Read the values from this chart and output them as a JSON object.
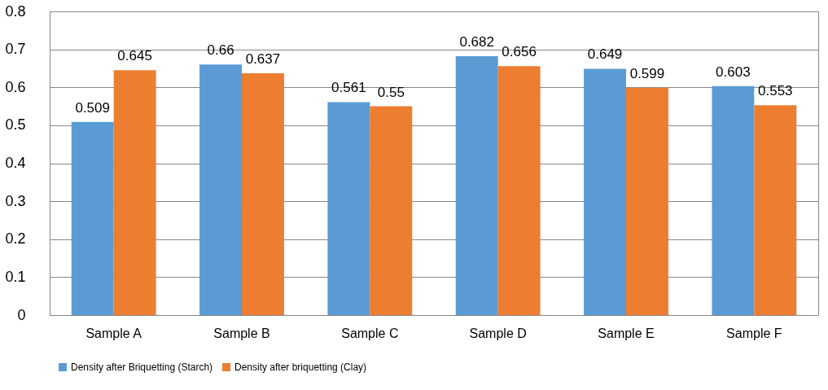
{
  "chart_data": {
    "type": "bar",
    "categories": [
      "Sample A",
      "Sample B",
      "Sample C",
      "Sample D",
      "Sample E",
      "Sample F"
    ],
    "series": [
      {
        "name": "Density after Briquetting (Starch)",
        "color": "#5b9bd5",
        "values": [
          0.509,
          0.66,
          0.561,
          0.682,
          0.649,
          0.603
        ]
      },
      {
        "name": "Density after briquetting (Clay)",
        "color": "#ed7d31",
        "values": [
          0.645,
          0.637,
          0.55,
          0.656,
          0.599,
          0.553
        ]
      }
    ],
    "ylim": [
      0,
      0.8
    ],
    "yticks": [
      0,
      0.1,
      0.2,
      0.3,
      0.4,
      0.5,
      0.6,
      0.7,
      0.8
    ],
    "grid": "y",
    "legend": "bottom",
    "data_labels": true
  }
}
